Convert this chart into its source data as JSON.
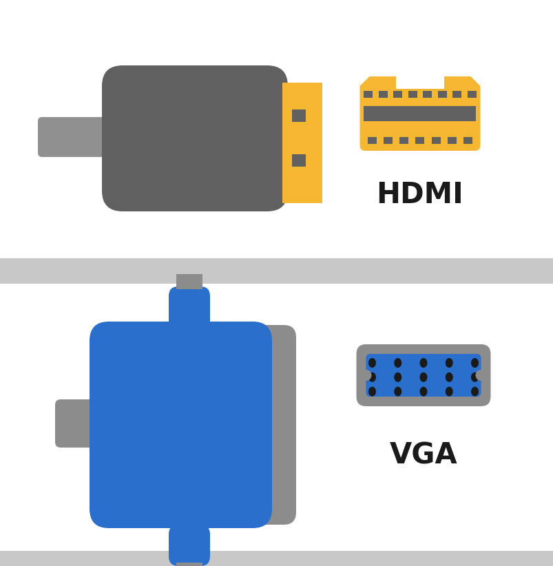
{
  "bg_color": "#ffffff",
  "divider_color": "#c8c8c8",
  "hdmi_gold": "#f5b731",
  "hdmi_dark": "#606060",
  "hdmi_gray_cable": "#909090",
  "hdmi_slot_color": "#606060",
  "vga_blue": "#2b6fcc",
  "vga_gray": "#8c8c8c",
  "vga_dark": "#1a1a1a",
  "label_hdmi": "HDMI",
  "label_vga": "VGA",
  "label_fontsize": 30,
  "label_fontweight": "bold",
  "label_color": "#1a1a1a"
}
